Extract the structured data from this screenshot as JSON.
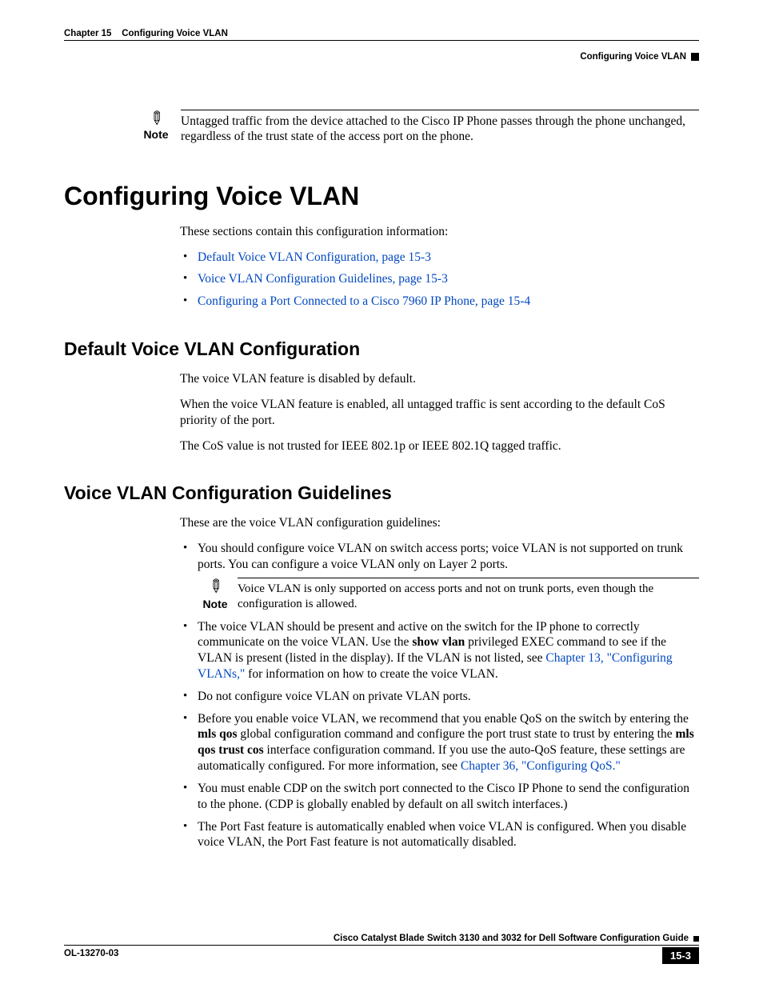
{
  "header": {
    "chapter_label": "Chapter 15",
    "chapter_title": "Configuring Voice VLAN",
    "section_right": "Configuring Voice VLAN"
  },
  "top_note": {
    "label": "Note",
    "text": "Untagged traffic from the device attached to the Cisco IP Phone passes through the phone unchanged, regardless of the trust state of the access port on the phone."
  },
  "title": "Configuring Voice VLAN",
  "intro": "These sections contain this configuration information:",
  "toc": [
    "Default Voice VLAN Configuration, page 15-3",
    "Voice VLAN Configuration Guidelines, page 15-3",
    "Configuring a Port Connected to a Cisco 7960 IP Phone, page 15-4"
  ],
  "section1": {
    "heading": "Default Voice VLAN Configuration",
    "p1": "The voice VLAN feature is disabled by default.",
    "p2": "When the voice VLAN feature is enabled, all untagged traffic is sent according to the default CoS priority of the port.",
    "p3": "The CoS value is not trusted for IEEE 802.1p or IEEE 802.1Q tagged traffic."
  },
  "section2": {
    "heading": "Voice VLAN Configuration Guidelines",
    "intro": "These are the voice VLAN configuration guidelines:",
    "b1": "You should configure voice VLAN on switch access ports; voice VLAN is not supported on trunk ports. You can configure a voice VLAN only on Layer 2 ports.",
    "note": {
      "label": "Note",
      "text": "Voice VLAN is only supported on access ports and not on trunk ports, even though the configuration is allowed."
    },
    "b2_a": "The voice VLAN should be present and active on the switch for the IP phone to correctly communicate on the voice VLAN. Use the ",
    "b2_cmd": "show vlan",
    "b2_b": " privileged EXEC command to see if the VLAN is present (listed in the display). If the VLAN is not listed, see ",
    "b2_link": "Chapter 13, \"Configuring VLANs,\"",
    "b2_c": " for information on how to create the voice VLAN.",
    "b3": "Do not configure voice VLAN on private VLAN ports.",
    "b4_a": "Before you enable voice VLAN, we recommend that you enable QoS on the switch by entering the ",
    "b4_cmd1": "mls qos",
    "b4_b": " global configuration command and configure the port trust state to trust by entering the ",
    "b4_cmd2": "mls qos trust cos",
    "b4_c": " interface configuration command. If you use the auto-QoS feature, these settings are automatically configured. For more information, see ",
    "b4_link": "Chapter 36, \"Configuring QoS.\"",
    "b5": "You must enable CDP on the switch port connected to the Cisco IP Phone to send the configuration to the phone. (CDP is globally enabled by default on all switch interfaces.)",
    "b6": "The Port Fast feature is automatically enabled when voice VLAN is configured. When you disable voice VLAN, the Port Fast feature is not automatically disabled."
  },
  "footer": {
    "guide_title": "Cisco Catalyst Blade Switch 3130 and 3032 for Dell Software Configuration Guide",
    "doc_id": "OL-13270-03",
    "page_num": "15-3"
  }
}
